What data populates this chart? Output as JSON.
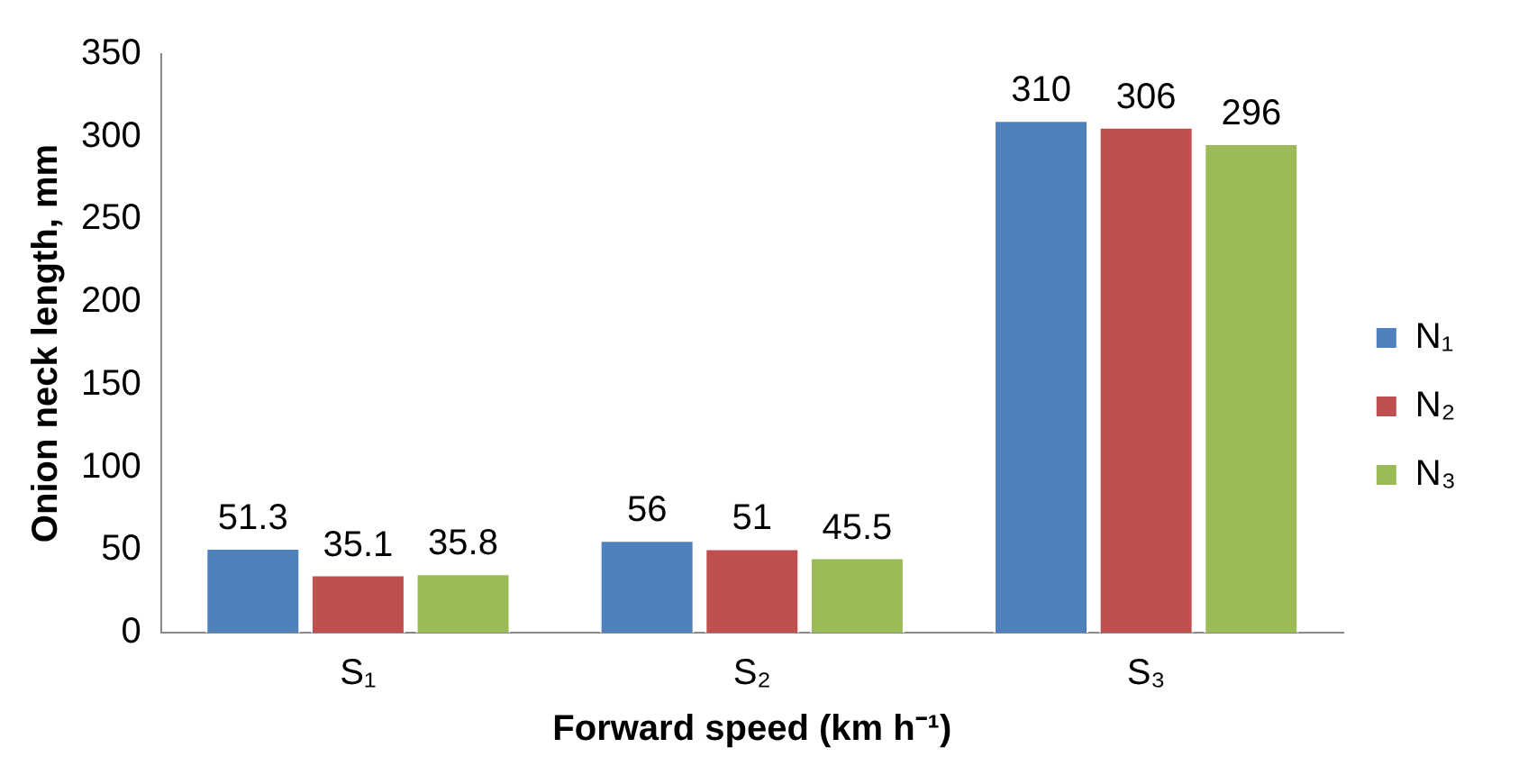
{
  "chart_data": {
    "type": "bar",
    "xlabel": "Forward speed (km h⁻¹)",
    "ylabel": "Onion neck length, mm",
    "categories": [
      "S₁",
      "S₂",
      "S₃"
    ],
    "series": [
      {
        "name": "N₁",
        "color": "#4f81bd",
        "values": [
          51.3,
          56,
          310
        ]
      },
      {
        "name": "N₂",
        "color": "#c0504d",
        "values": [
          35.1,
          51,
          306
        ]
      },
      {
        "name": "N₃",
        "color": "#9bbb59",
        "values": [
          35.8,
          45.5,
          296
        ]
      }
    ],
    "ylim": [
      0,
      350
    ],
    "yticks": [
      0,
      50,
      100,
      150,
      200,
      250,
      300,
      350
    ],
    "grid": false,
    "legend": "right",
    "data_labels": true
  }
}
